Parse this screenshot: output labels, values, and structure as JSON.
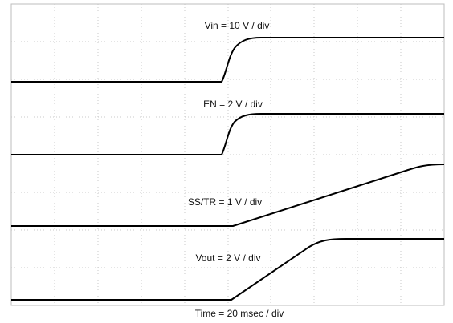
{
  "labels": {
    "vin": "Vin = 10 V / div",
    "en": "EN = 2 V / div",
    "ss_tr": "SS/TR = 1 V / div",
    "vout": "Vout = 2 V / div",
    "time": "Time = 20 msec / div"
  }
}
